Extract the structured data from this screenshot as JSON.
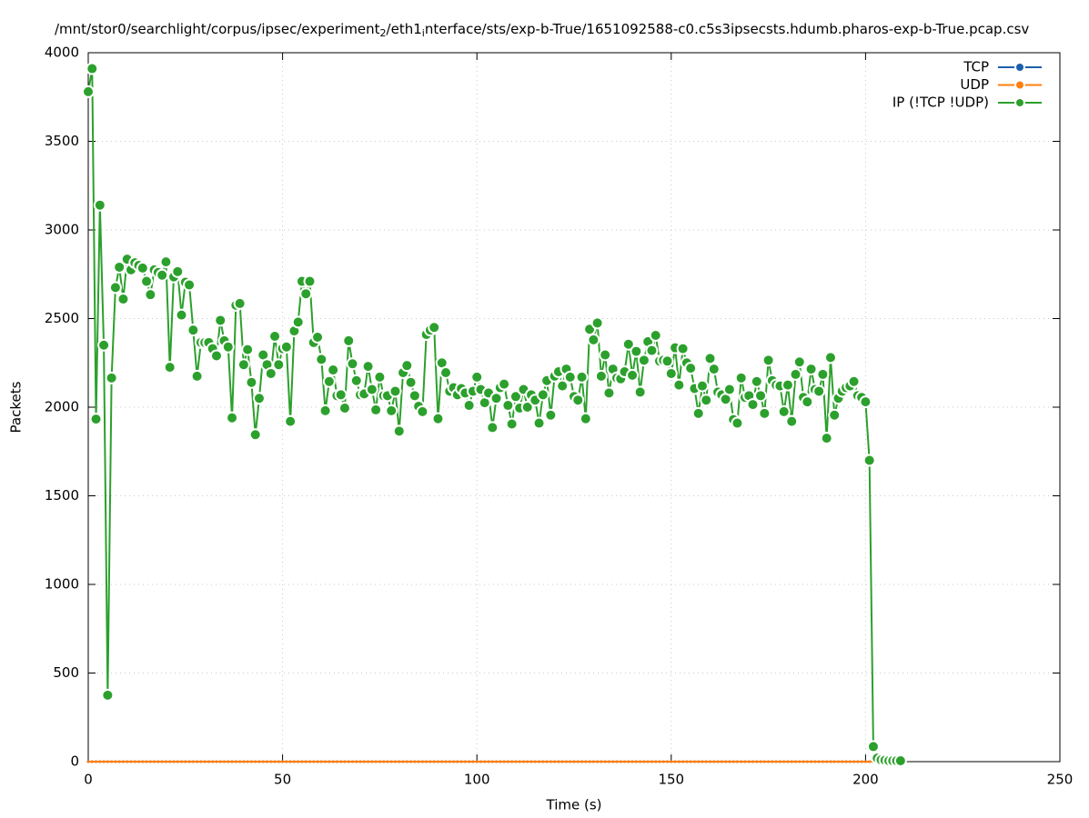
{
  "chart_data": {
    "type": "line",
    "title": [
      "/mnt/stor0/searchlight/corpus/ipsec/experiment",
      "2",
      "/eth1",
      "i",
      "nterface/sts/exp-b-True/1651092588-c0.c5s3ipsecsts.hdumb.pharos-exp-b-True.pcap.csv"
    ],
    "x_label": "Time (s)",
    "y_label": "Packets",
    "xlim": [
      0,
      250
    ],
    "xticks": [
      0,
      50,
      100,
      150,
      200,
      250
    ],
    "ylim": [
      0,
      4000
    ],
    "yticks": [
      0,
      500,
      1000,
      1500,
      2000,
      2500,
      3000,
      3500,
      4000
    ],
    "grid": true,
    "legend": "top-right",
    "x": [
      0,
      1,
      2,
      3,
      4,
      5,
      6,
      7,
      8,
      9,
      10,
      11,
      12,
      13,
      14,
      15,
      16,
      17,
      18,
      19,
      20,
      21,
      22,
      23,
      24,
      25,
      26,
      27,
      28,
      29,
      30,
      31,
      32,
      33,
      34,
      35,
      36,
      37,
      38,
      39,
      40,
      41,
      42,
      43,
      44,
      45,
      46,
      47,
      48,
      49,
      50,
      51,
      52,
      53,
      54,
      55,
      56,
      57,
      58,
      59,
      60,
      61,
      62,
      63,
      64,
      65,
      66,
      67,
      68,
      69,
      70,
      71,
      72,
      73,
      74,
      75,
      76,
      77,
      78,
      79,
      80,
      81,
      82,
      83,
      84,
      85,
      86,
      87,
      88,
      89,
      90,
      91,
      92,
      93,
      94,
      95,
      96,
      97,
      98,
      99,
      100,
      101,
      102,
      103,
      104,
      105,
      106,
      107,
      108,
      109,
      110,
      111,
      112,
      113,
      114,
      115,
      116,
      117,
      118,
      119,
      120,
      121,
      122,
      123,
      124,
      125,
      126,
      127,
      128,
      129,
      130,
      131,
      132,
      133,
      134,
      135,
      136,
      137,
      138,
      139,
      140,
      141,
      142,
      143,
      144,
      145,
      146,
      147,
      148,
      149,
      150,
      151,
      152,
      153,
      154,
      155,
      156,
      157,
      158,
      159,
      160,
      161,
      162,
      163,
      164,
      165,
      166,
      167,
      168,
      169,
      170,
      171,
      172,
      173,
      174,
      175,
      176,
      177,
      178,
      179,
      180,
      181,
      182,
      183,
      184,
      185,
      186,
      187,
      188,
      189,
      190,
      191,
      192,
      193,
      194,
      195,
      196,
      197,
      198,
      199,
      200,
      201,
      202,
      203,
      204,
      205,
      206,
      207,
      208,
      209
    ],
    "series": [
      {
        "name": "TCP",
        "color": "#1a5fab",
        "values": [
          0,
          0,
          0,
          0,
          0,
          0,
          0,
          0,
          0,
          0,
          0,
          0,
          0,
          0,
          0,
          0,
          0,
          0,
          0,
          0,
          0,
          0,
          0,
          0,
          0,
          0,
          0,
          0,
          0,
          0,
          0,
          0,
          0,
          0,
          0,
          0,
          0,
          0,
          0,
          0,
          0,
          0,
          0,
          0,
          0,
          0,
          0,
          0,
          0,
          0,
          0,
          0,
          0,
          0,
          0,
          0,
          0,
          0,
          0,
          0,
          0,
          0,
          0,
          0,
          0,
          0,
          0,
          0,
          0,
          0,
          0,
          0,
          0,
          0,
          0,
          0,
          0,
          0,
          0,
          0,
          0,
          0,
          0,
          0,
          0,
          0,
          0,
          0,
          0,
          0,
          0,
          0,
          0,
          0,
          0,
          0,
          0,
          0,
          0,
          0,
          0,
          0,
          0,
          0,
          0,
          0,
          0,
          0,
          0,
          0,
          0,
          0,
          0,
          0,
          0,
          0,
          0,
          0,
          0,
          0,
          0,
          0,
          0,
          0,
          0,
          0,
          0,
          0,
          0,
          0,
          0,
          0,
          0,
          0,
          0,
          0,
          0,
          0,
          0,
          0,
          0,
          0,
          0,
          0,
          0,
          0,
          0,
          0,
          0,
          0,
          0,
          0,
          0,
          0,
          0,
          0,
          0,
          0,
          0,
          0,
          0,
          0,
          0,
          0,
          0,
          0,
          0,
          0,
          0,
          0,
          0,
          0,
          0,
          0,
          0,
          0,
          0,
          0,
          0,
          0,
          0,
          0,
          0,
          0,
          0,
          0,
          0,
          0,
          0,
          0,
          0,
          0,
          0,
          0,
          0,
          0,
          0,
          0,
          0,
          0,
          0,
          0,
          0,
          0,
          0,
          0,
          0,
          0,
          0,
          0
        ]
      },
      {
        "name": "UDP",
        "color": "#ff7f0e",
        "values": [
          0,
          0,
          0,
          0,
          0,
          0,
          0,
          0,
          0,
          0,
          0,
          0,
          0,
          0,
          0,
          0,
          0,
          0,
          0,
          0,
          0,
          0,
          0,
          0,
          0,
          0,
          0,
          0,
          0,
          0,
          0,
          0,
          0,
          0,
          0,
          0,
          0,
          0,
          0,
          0,
          0,
          0,
          0,
          0,
          0,
          0,
          0,
          0,
          0,
          0,
          0,
          0,
          0,
          0,
          0,
          0,
          0,
          0,
          0,
          0,
          0,
          0,
          0,
          0,
          0,
          0,
          0,
          0,
          0,
          0,
          0,
          0,
          0,
          0,
          0,
          0,
          0,
          0,
          0,
          0,
          0,
          0,
          0,
          0,
          0,
          0,
          0,
          0,
          0,
          0,
          0,
          0,
          0,
          0,
          0,
          0,
          0,
          0,
          0,
          0,
          0,
          0,
          0,
          0,
          0,
          0,
          0,
          0,
          0,
          0,
          0,
          0,
          0,
          0,
          0,
          0,
          0,
          0,
          0,
          0,
          0,
          0,
          0,
          0,
          0,
          0,
          0,
          0,
          0,
          0,
          0,
          0,
          0,
          0,
          0,
          0,
          0,
          0,
          0,
          0,
          0,
          0,
          0,
          0,
          0,
          0,
          0,
          0,
          0,
          0,
          0,
          0,
          0,
          0,
          0,
          0,
          0,
          0,
          0,
          0,
          0,
          0,
          0,
          0,
          0,
          0,
          0,
          0,
          0,
          0,
          0,
          0,
          0,
          0,
          0,
          0,
          0,
          0,
          0,
          0,
          0,
          0,
          0,
          0,
          0,
          0,
          0,
          0,
          0,
          0,
          0,
          0,
          0,
          0,
          0,
          0,
          0,
          0,
          0,
          0,
          0,
          0,
          0,
          0,
          0,
          0,
          0,
          0,
          0,
          0
        ]
      },
      {
        "name": "IP (!TCP  !UDP)",
        "color": "#2ca02c",
        "values": [
          3780,
          3910,
          1933,
          3140,
          2350,
          375,
          2165,
          2675,
          2790,
          2610,
          2835,
          2775,
          2815,
          2800,
          2785,
          2710,
          2635,
          2775,
          2760,
          2745,
          2820,
          2225,
          2735,
          2765,
          2520,
          2705,
          2690,
          2435,
          2175,
          2365,
          2365,
          2365,
          2330,
          2290,
          2490,
          2375,
          2340,
          1940,
          2575,
          2585,
          2240,
          2325,
          2140,
          1845,
          2050,
          2295,
          2240,
          2190,
          2400,
          2240,
          2330,
          2340,
          1920,
          2430,
          2480,
          2710,
          2640,
          2710,
          2365,
          2395,
          2270,
          1980,
          2145,
          2210,
          2065,
          2070,
          1995,
          2375,
          2245,
          2150,
          2070,
          2075,
          2230,
          2100,
          1985,
          2170,
          2065,
          2065,
          1980,
          2090,
          1865,
          2195,
          2235,
          2140,
          2065,
          2005,
          1975,
          2410,
          2435,
          2450,
          1935,
          2250,
          2195,
          2090,
          2110,
          2070,
          2105,
          2080,
          2010,
          2090,
          2170,
          2100,
          2025,
          2080,
          1885,
          2050,
          2110,
          2130,
          2010,
          1905,
          2060,
          1995,
          2100,
          2000,
          2070,
          2040,
          1910,
          2070,
          2150,
          1955,
          2175,
          2200,
          2120,
          2215,
          2170,
          2060,
          2040,
          2170,
          1935,
          2440,
          2380,
          2475,
          2175,
          2295,
          2080,
          2215,
          2165,
          2160,
          2200,
          2355,
          2180,
          2315,
          2085,
          2265,
          2370,
          2320,
          2405,
          2260,
          2265,
          2260,
          2190,
          2335,
          2125,
          2330,
          2250,
          2220,
          2105,
          1965,
          2120,
          2040,
          2275,
          2215,
          2085,
          2070,
          2045,
          2100,
          1930,
          1910,
          2165,
          2055,
          2065,
          2015,
          2145,
          2065,
          1965,
          2265,
          2150,
          2125,
          2120,
          1975,
          2125,
          1920,
          2185,
          2255,
          2055,
          2030,
          2215,
          2100,
          2090,
          2185,
          1825,
          2280,
          1955,
          2050,
          2090,
          2110,
          2120,
          2145,
          2065,
          2055,
          2030,
          1700,
          85,
          20,
          10,
          8,
          5,
          5,
          5,
          5
        ]
      }
    ]
  }
}
